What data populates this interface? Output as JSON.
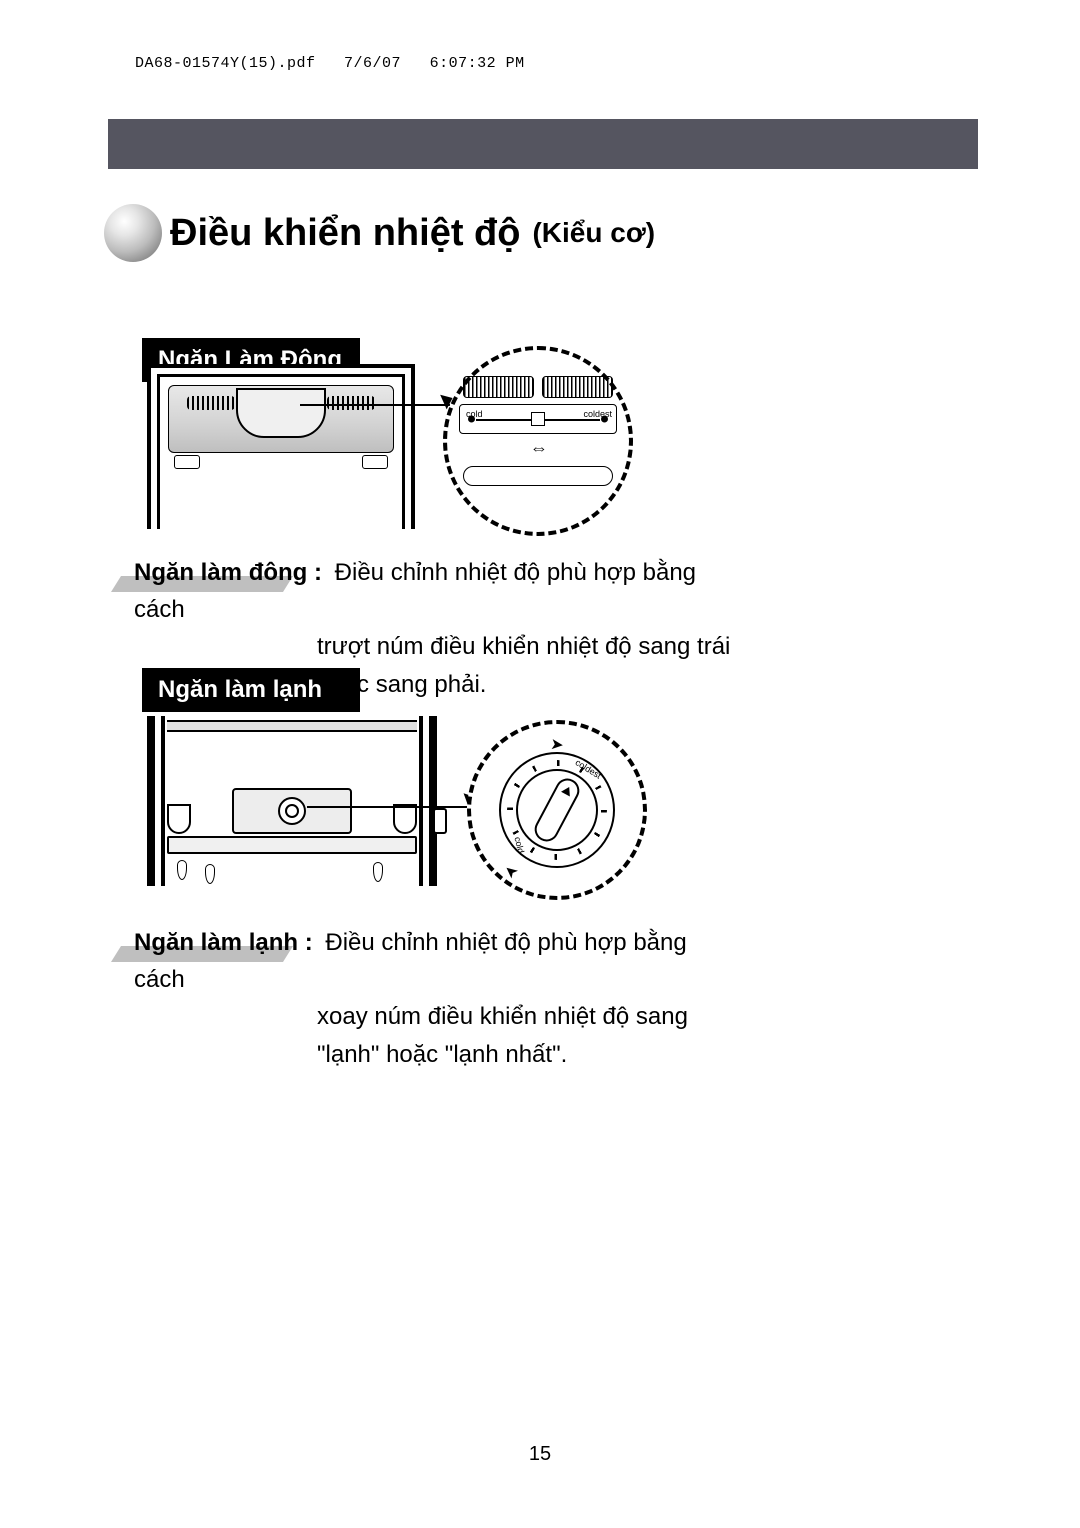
{
  "meta": {
    "filename": "DA68-01574Y(15).pdf",
    "date": "7/6/07",
    "time": "6:07:32 PM"
  },
  "heading": {
    "main": "Điều khiển nhiệt độ",
    "sub": "(Kiểu cơ)"
  },
  "sections": {
    "freezer": {
      "badge": "Ngăn Làm Đông",
      "slider": {
        "left_label": "cold",
        "right_label": "coldest"
      },
      "desc_label": "Ngăn làm đông :",
      "desc_line1": "Điều chỉnh nhiệt độ phù hợp bằng cách",
      "desc_line2": "trượt núm điều khiển nhiệt độ sang trái hoặc sang phải."
    },
    "fridge": {
      "badge": "Ngăn làm lạnh",
      "dial": {
        "coldest": "coldest",
        "cold": "cold"
      },
      "desc_label": "Ngăn làm lạnh :",
      "desc_line1": "Điều chỉnh nhiệt độ phù hợp bằng cách",
      "desc_line2": "xoay núm điều khiển nhiệt độ sang \"lạnh\" hoặc \"lạnh nhất\"."
    }
  },
  "glyphs": {
    "double_arrow": "⇔",
    "arc_arrow": "➤"
  },
  "page_number": "15",
  "colors": {
    "bar": "#555560",
    "badge_bg": "#000000",
    "badge_fg": "#ffffff",
    "shadow": "#bfbfbf",
    "text": "#000000",
    "page_bg": "#ffffff"
  }
}
